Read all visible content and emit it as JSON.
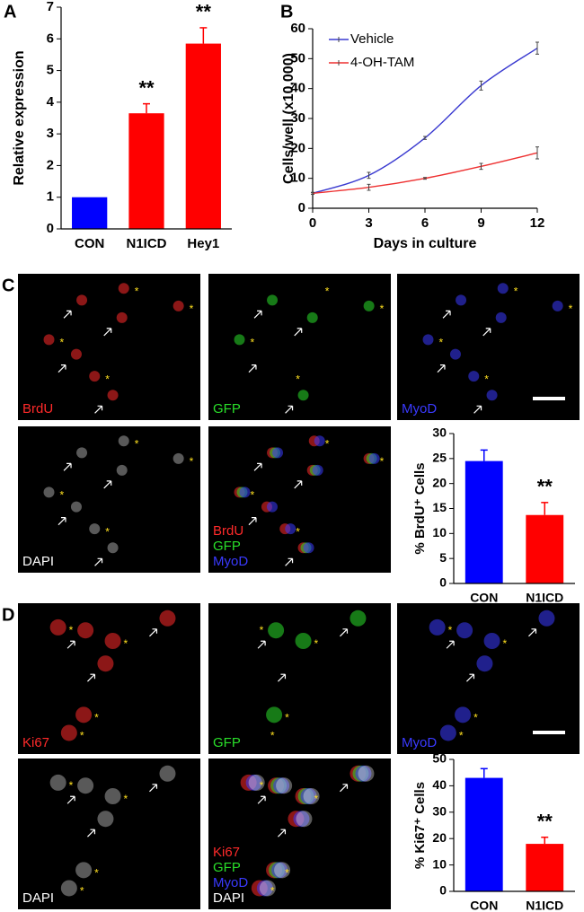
{
  "chart_data": [
    {
      "type": "bar",
      "panel_label": "A",
      "ylabel": "Relative expression",
      "categories": [
        "CON",
        "N1ICD",
        "Hey1"
      ],
      "values": [
        1,
        3.65,
        5.85
      ],
      "errors": [
        0,
        0.3,
        0.5
      ],
      "colors": [
        "#0000ff",
        "#ff0000",
        "#ff0000"
      ],
      "significance": [
        null,
        "**",
        "**"
      ],
      "ylim": [
        0,
        7
      ],
      "yticks": [
        0,
        1,
        2,
        3,
        4,
        5,
        6,
        7
      ]
    },
    {
      "type": "line",
      "panel_label": "B",
      "xlabel": "Days in culture",
      "ylabel": "Cells/well (x10,000)",
      "x": [
        0,
        3,
        6,
        9,
        12
      ],
      "series": [
        {
          "name": "Vehicle",
          "color": "#3a3ad0",
          "values": [
            5,
            11,
            23.5,
            41,
            53.5
          ],
          "errors": [
            0.3,
            1,
            0.5,
            1.5,
            2
          ]
        },
        {
          "name": "4-OH-TAM",
          "color": "#ee3030",
          "values": [
            5,
            7,
            10,
            14,
            18.5
          ],
          "errors": [
            0.3,
            1,
            0.3,
            1,
            2
          ]
        }
      ],
      "xlim": [
        0,
        12
      ],
      "xticks": [
        0,
        3,
        6,
        9,
        12
      ],
      "ylim": [
        0,
        60
      ],
      "yticks": [
        0,
        10,
        20,
        30,
        40,
        50,
        60
      ],
      "legend": "upper left"
    },
    {
      "type": "bar",
      "ylabel": "% BrdU⁺ Cells",
      "categories": [
        "CON",
        "N1ICD"
      ],
      "values": [
        24.5,
        13.7
      ],
      "errors": [
        2.2,
        2.5
      ],
      "colors": [
        "#0000ff",
        "#ff0000"
      ],
      "significance": [
        null,
        "**"
      ],
      "ylim": [
        0,
        30
      ],
      "yticks": [
        0,
        5,
        10,
        15,
        20,
        25,
        30
      ]
    },
    {
      "type": "bar",
      "ylabel": "% Ki67⁺ Cells",
      "categories": [
        "CON",
        "N1ICD"
      ],
      "values": [
        43,
        18
      ],
      "errors": [
        3.5,
        2.5
      ],
      "colors": [
        "#0000ff",
        "#ff0000"
      ],
      "significance": [
        null,
        "**"
      ],
      "ylim": [
        0,
        50
      ],
      "yticks": [
        0,
        10,
        20,
        30,
        40,
        50
      ]
    }
  ],
  "panels": [
    {
      "label": "C",
      "tiles": [
        [
          "BrdU"
        ],
        [
          "GFP"
        ],
        [
          "MyoD"
        ],
        [
          "DAPI"
        ],
        [
          "BrdU",
          "GFP",
          "MyoD"
        ]
      ]
    },
    {
      "label": "D",
      "tiles": [
        [
          "Ki67"
        ],
        [
          "GFP"
        ],
        [
          "MyoD"
        ],
        [
          "DAPI"
        ],
        [
          "Ki67",
          "GFP",
          "MyoD",
          "DAPI"
        ]
      ]
    }
  ],
  "stain_colors": {
    "BrdU": "#ff2a2a",
    "Ki67": "#ff2a2a",
    "GFP": "#2adf2a",
    "MyoD": "#3a3aff",
    "DAPI": "#ffffff"
  }
}
